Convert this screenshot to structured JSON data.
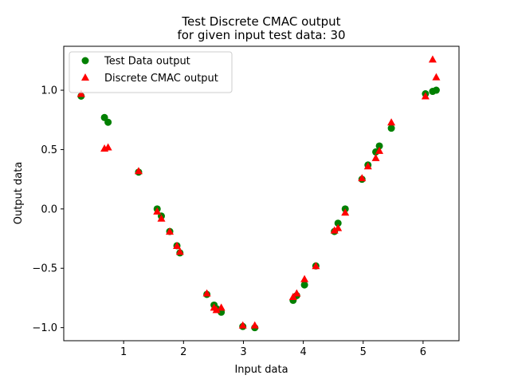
{
  "chart_data": {
    "type": "scatter",
    "title": "Test Discrete CMAC output",
    "subtitle": "for given input test data: 30",
    "xlabel": "Input data",
    "ylabel": "Output data",
    "xlim": [
      0.0,
      6.6
    ],
    "ylim": [
      -1.11,
      1.37
    ],
    "xticks": [
      1,
      2,
      3,
      4,
      5,
      6
    ],
    "xtick_labels": [
      "1",
      "2",
      "3",
      "4",
      "5",
      "6"
    ],
    "yticks": [
      -1.0,
      -0.5,
      0.0,
      0.5,
      1.0
    ],
    "ytick_labels": [
      "−1.0",
      "−0.5",
      "0.0",
      "0.5",
      "1.0"
    ],
    "grid": false,
    "legend_position": "top-left",
    "series": [
      {
        "name": "Test Data output",
        "marker": "circle",
        "color": "#008000",
        "points": [
          [
            0.29,
            0.95
          ],
          [
            0.68,
            0.77
          ],
          [
            0.74,
            0.73
          ],
          [
            1.25,
            0.31
          ],
          [
            1.56,
            0.0
          ],
          [
            1.63,
            -0.06
          ],
          [
            1.77,
            -0.19
          ],
          [
            1.89,
            -0.31
          ],
          [
            1.94,
            -0.37
          ],
          [
            2.39,
            -0.72
          ],
          [
            2.51,
            -0.81
          ],
          [
            2.55,
            -0.84
          ],
          [
            2.63,
            -0.87
          ],
          [
            2.99,
            -0.99
          ],
          [
            3.19,
            -1.0
          ],
          [
            3.83,
            -0.77
          ],
          [
            3.89,
            -0.73
          ],
          [
            4.02,
            -0.64
          ],
          [
            4.21,
            -0.48
          ],
          [
            4.52,
            -0.19
          ],
          [
            4.58,
            -0.12
          ],
          [
            4.7,
            0.0
          ],
          [
            4.98,
            0.25
          ],
          [
            5.08,
            0.37
          ],
          [
            5.21,
            0.48
          ],
          [
            5.27,
            0.53
          ],
          [
            5.47,
            0.68
          ],
          [
            6.04,
            0.97
          ],
          [
            6.16,
            0.99
          ],
          [
            6.22,
            1.0
          ]
        ]
      },
      {
        "name": "Discrete CMAC output",
        "marker": "triangle",
        "color": "#ff0000",
        "points": [
          [
            0.29,
            0.97
          ],
          [
            0.68,
            0.51
          ],
          [
            0.74,
            0.52
          ],
          [
            1.25,
            0.32
          ],
          [
            1.56,
            -0.02
          ],
          [
            1.63,
            -0.08
          ],
          [
            1.77,
            -0.19
          ],
          [
            1.89,
            -0.31
          ],
          [
            1.94,
            -0.36
          ],
          [
            2.39,
            -0.71
          ],
          [
            2.51,
            -0.83
          ],
          [
            2.55,
            -0.85
          ],
          [
            2.63,
            -0.83
          ],
          [
            2.99,
            -0.98
          ],
          [
            3.19,
            -0.98
          ],
          [
            3.83,
            -0.74
          ],
          [
            3.89,
            -0.71
          ],
          [
            4.02,
            -0.59
          ],
          [
            4.21,
            -0.48
          ],
          [
            4.52,
            -0.18
          ],
          [
            4.58,
            -0.16
          ],
          [
            4.7,
            -0.03
          ],
          [
            4.98,
            0.26
          ],
          [
            5.08,
            0.36
          ],
          [
            5.21,
            0.43
          ],
          [
            5.27,
            0.49
          ],
          [
            5.47,
            0.73
          ],
          [
            6.04,
            0.95
          ],
          [
            6.16,
            1.26
          ],
          [
            6.22,
            1.11
          ]
        ]
      }
    ]
  }
}
